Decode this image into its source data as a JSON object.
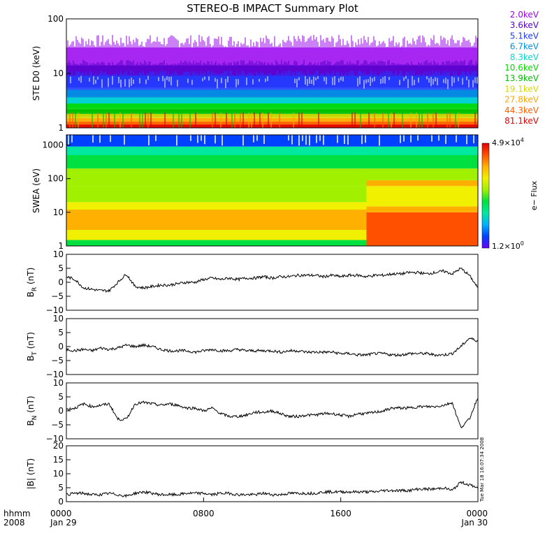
{
  "title": "STEREO-B IMPACT Summary Plot",
  "colors": {
    "frame": "#000000",
    "trace": "#000000"
  },
  "chart_data": [
    {
      "type": "heatmap",
      "panel": "ste",
      "ylabel": "STE D0 (keV)",
      "yscale": "log",
      "ylim": [
        1,
        100
      ],
      "yticks": [
        "1",
        "10",
        "100"
      ],
      "series": [
        {
          "name": "2.0keV",
          "color": "#9900ee",
          "band": [
            9,
            30
          ]
        },
        {
          "name": "3.6keV",
          "color": "#5500cc",
          "band": [
            5.5,
            14
          ]
        },
        {
          "name": "5.1keV",
          "color": "#1e3cff",
          "band": [
            3.7,
            9
          ]
        },
        {
          "name": "6.7keV",
          "color": "#0090e0",
          "band": [
            2.8,
            5
          ]
        },
        {
          "name": "8.3keV",
          "color": "#00d8d0",
          "band": [
            2.3,
            3.6
          ]
        },
        {
          "name": "10.6keV",
          "color": "#00d800",
          "band": [
            1.9,
            2.8
          ]
        },
        {
          "name": "13.9keV",
          "color": "#00c000",
          "band": [
            1.6,
            2.2
          ]
        },
        {
          "name": "19.1keV",
          "color": "#d8d800",
          "band": [
            1.35,
            1.8
          ]
        },
        {
          "name": "27.8keV",
          "color": "#ffa800",
          "band": [
            1.15,
            1.5
          ]
        },
        {
          "name": "44.3keV",
          "color": "#ff6000",
          "band": [
            1.0,
            1.3
          ]
        },
        {
          "name": "81.1keV",
          "color": "#e00000",
          "band": [
            0.85,
            1.15
          ]
        }
      ]
    },
    {
      "type": "heatmap",
      "panel": "swea",
      "ylabel": "SWEA (eV)",
      "yscale": "log",
      "ylim": [
        1,
        2000
      ],
      "yticks": [
        "1",
        "10",
        "100",
        "1000"
      ],
      "colorbar": {
        "label": "e− Flux",
        "max_label": "4.9×10",
        "max_exp": "4",
        "min_label": "1.2×10",
        "min_exp": "0",
        "range": [
          1.2,
          49000
        ],
        "colors": [
          "#6a00ff",
          "#0040ff",
          "#00b0ff",
          "#00e8a0",
          "#00e040",
          "#a0f000",
          "#f0f000",
          "#ffb000",
          "#ff5000",
          "#e00000"
        ]
      }
    },
    {
      "type": "line",
      "panel": "br",
      "ylabel": "B",
      "ysub": "R",
      "yunit": "(nT)",
      "ylim": [
        -10,
        10
      ],
      "yticks": [
        "10",
        "5",
        "0",
        "−5",
        "−10"
      ],
      "x": [
        0,
        0.5,
        1,
        1.5,
        2,
        2.5,
        3,
        3.5,
        4,
        4.5,
        5,
        5.5,
        6,
        6.5,
        7,
        7.5,
        8,
        8.5,
        9,
        9.5,
        10,
        10.5,
        11,
        11.5,
        12,
        12.5,
        13,
        13.5,
        14,
        14.5,
        15,
        15.5,
        16,
        16.5,
        17,
        17.5,
        18,
        18.5,
        19,
        19.5,
        20,
        20.5,
        21,
        21.5,
        22,
        22.5,
        23,
        23.5,
        24
      ],
      "y": [
        2,
        1,
        -2,
        -2.5,
        -3,
        -3,
        0,
        3,
        -1.5,
        -2,
        -1.5,
        -1,
        -1,
        -0.5,
        0,
        0,
        1,
        1.5,
        1,
        1.5,
        1,
        1.5,
        1.5,
        2,
        1.5,
        2,
        2,
        2.5,
        2.5,
        2.5,
        2,
        2.5,
        2,
        2.5,
        2.5,
        2,
        2.5,
        2.5,
        3,
        3,
        3.5,
        3.5,
        3,
        3.5,
        4,
        3,
        5,
        2.5,
        -2
      ]
    },
    {
      "type": "line",
      "panel": "bt",
      "ylabel": "B",
      "ysub": "T",
      "yunit": "(nT)",
      "ylim": [
        -10,
        10
      ],
      "yticks": [
        "10",
        "5",
        "0",
        "−5",
        "−10"
      ],
      "x": [
        0,
        0.5,
        1,
        1.5,
        2,
        2.5,
        3,
        3.5,
        4,
        4.5,
        5,
        5.5,
        6,
        6.5,
        7,
        7.5,
        8,
        8.5,
        9,
        9.5,
        10,
        10.5,
        11,
        11.5,
        12,
        12.5,
        13,
        13.5,
        14,
        14.5,
        15,
        15.5,
        16,
        16.5,
        17,
        17.5,
        18,
        18.5,
        19,
        19.5,
        20,
        20.5,
        21,
        21.5,
        22,
        22.5,
        23,
        23.5,
        24
      ],
      "y": [
        -1,
        -1.5,
        -1,
        -1.5,
        -0.5,
        -1,
        -0.5,
        0.5,
        0,
        0.5,
        0,
        -1,
        -1.5,
        -1.5,
        -1.5,
        -2,
        -1.5,
        -1,
        -1.5,
        -1.5,
        -1,
        -1.5,
        -1.5,
        -1.5,
        -1.5,
        -2,
        -1.5,
        -1.5,
        -2,
        -2,
        -2,
        -2,
        -2.5,
        -2.5,
        -3,
        -3,
        -2.5,
        -2.5,
        -3,
        -3,
        -2.5,
        -2.5,
        -2.5,
        -3,
        -3,
        -2.5,
        0,
        3,
        2
      ]
    },
    {
      "type": "line",
      "panel": "bn",
      "ylabel": "B",
      "ysub": "N",
      "yunit": "(nT)",
      "ylim": [
        -10,
        10
      ],
      "yticks": [
        "10",
        "5",
        "0",
        "−5",
        "−10"
      ],
      "x": [
        0,
        0.5,
        1,
        1.5,
        2,
        2.5,
        3,
        3.5,
        4,
        4.5,
        5,
        5.5,
        6,
        6.5,
        7,
        7.5,
        8,
        8.5,
        9,
        9.5,
        10,
        10.5,
        11,
        11.5,
        12,
        12.5,
        13,
        13.5,
        14,
        14.5,
        15,
        15.5,
        16,
        16.5,
        17,
        17.5,
        18,
        18.5,
        19,
        19.5,
        20,
        20.5,
        21,
        21.5,
        22,
        22.5,
        23,
        23.5,
        24
      ],
      "y": [
        0.5,
        1,
        2.5,
        1.5,
        2,
        2.5,
        -3,
        -3,
        2.5,
        3,
        2.5,
        2,
        2.5,
        2,
        1,
        1,
        0,
        1,
        -1,
        -2,
        -2,
        -1.5,
        -0.5,
        -0.5,
        0,
        -1,
        -2,
        -2,
        -1.5,
        -1.5,
        -1,
        -1,
        -1.5,
        -2,
        -1,
        -1,
        -0.5,
        0,
        1,
        1,
        1,
        1.5,
        1.5,
        1.5,
        2,
        3,
        -6,
        -3,
        5
      ]
    },
    {
      "type": "line",
      "panel": "bmag",
      "ylabel": "|B|",
      "yunit": "(nT)",
      "ylim": [
        0,
        20
      ],
      "yticks": [
        "20",
        "15",
        "10",
        "5",
        "0"
      ],
      "x": [
        0,
        0.5,
        1,
        1.5,
        2,
        2.5,
        3,
        3.5,
        4,
        4.5,
        5,
        5.5,
        6,
        6.5,
        7,
        7.5,
        8,
        8.5,
        9,
        9.5,
        10,
        10.5,
        11,
        11.5,
        12,
        12.5,
        13,
        13.5,
        14,
        14.5,
        15,
        15.5,
        16,
        16.5,
        17,
        17.5,
        18,
        18.5,
        19,
        19.5,
        20,
        20.5,
        21,
        21.5,
        22,
        22.5,
        23,
        23.5,
        24
      ],
      "y": [
        2.5,
        3,
        3,
        2.5,
        2.5,
        3,
        2.5,
        2,
        3,
        3.5,
        3,
        2.5,
        2.5,
        2.5,
        3,
        3,
        3,
        2.5,
        3,
        3,
        2.5,
        2.5,
        2.5,
        3,
        2.5,
        2.5,
        3,
        3,
        3,
        3,
        3.5,
        3.5,
        3.5,
        3.5,
        3.5,
        3.5,
        3.5,
        4,
        4,
        4,
        4,
        4.5,
        4.5,
        4.5,
        5,
        4,
        7,
        6,
        5
      ]
    }
  ],
  "xaxis": {
    "header_top": "hhmm",
    "header_bottom": "2008",
    "ticks": [
      {
        "t": 0,
        "top": "0000",
        "bottom": "Jan 29"
      },
      {
        "t": 8,
        "top": "0800",
        "bottom": ""
      },
      {
        "t": 16,
        "top": "1600",
        "bottom": ""
      },
      {
        "t": 24,
        "top": "0000",
        "bottom": "Jan 30"
      }
    ]
  },
  "side_stamp": "Tue Mar 18 16:07:34 2008"
}
